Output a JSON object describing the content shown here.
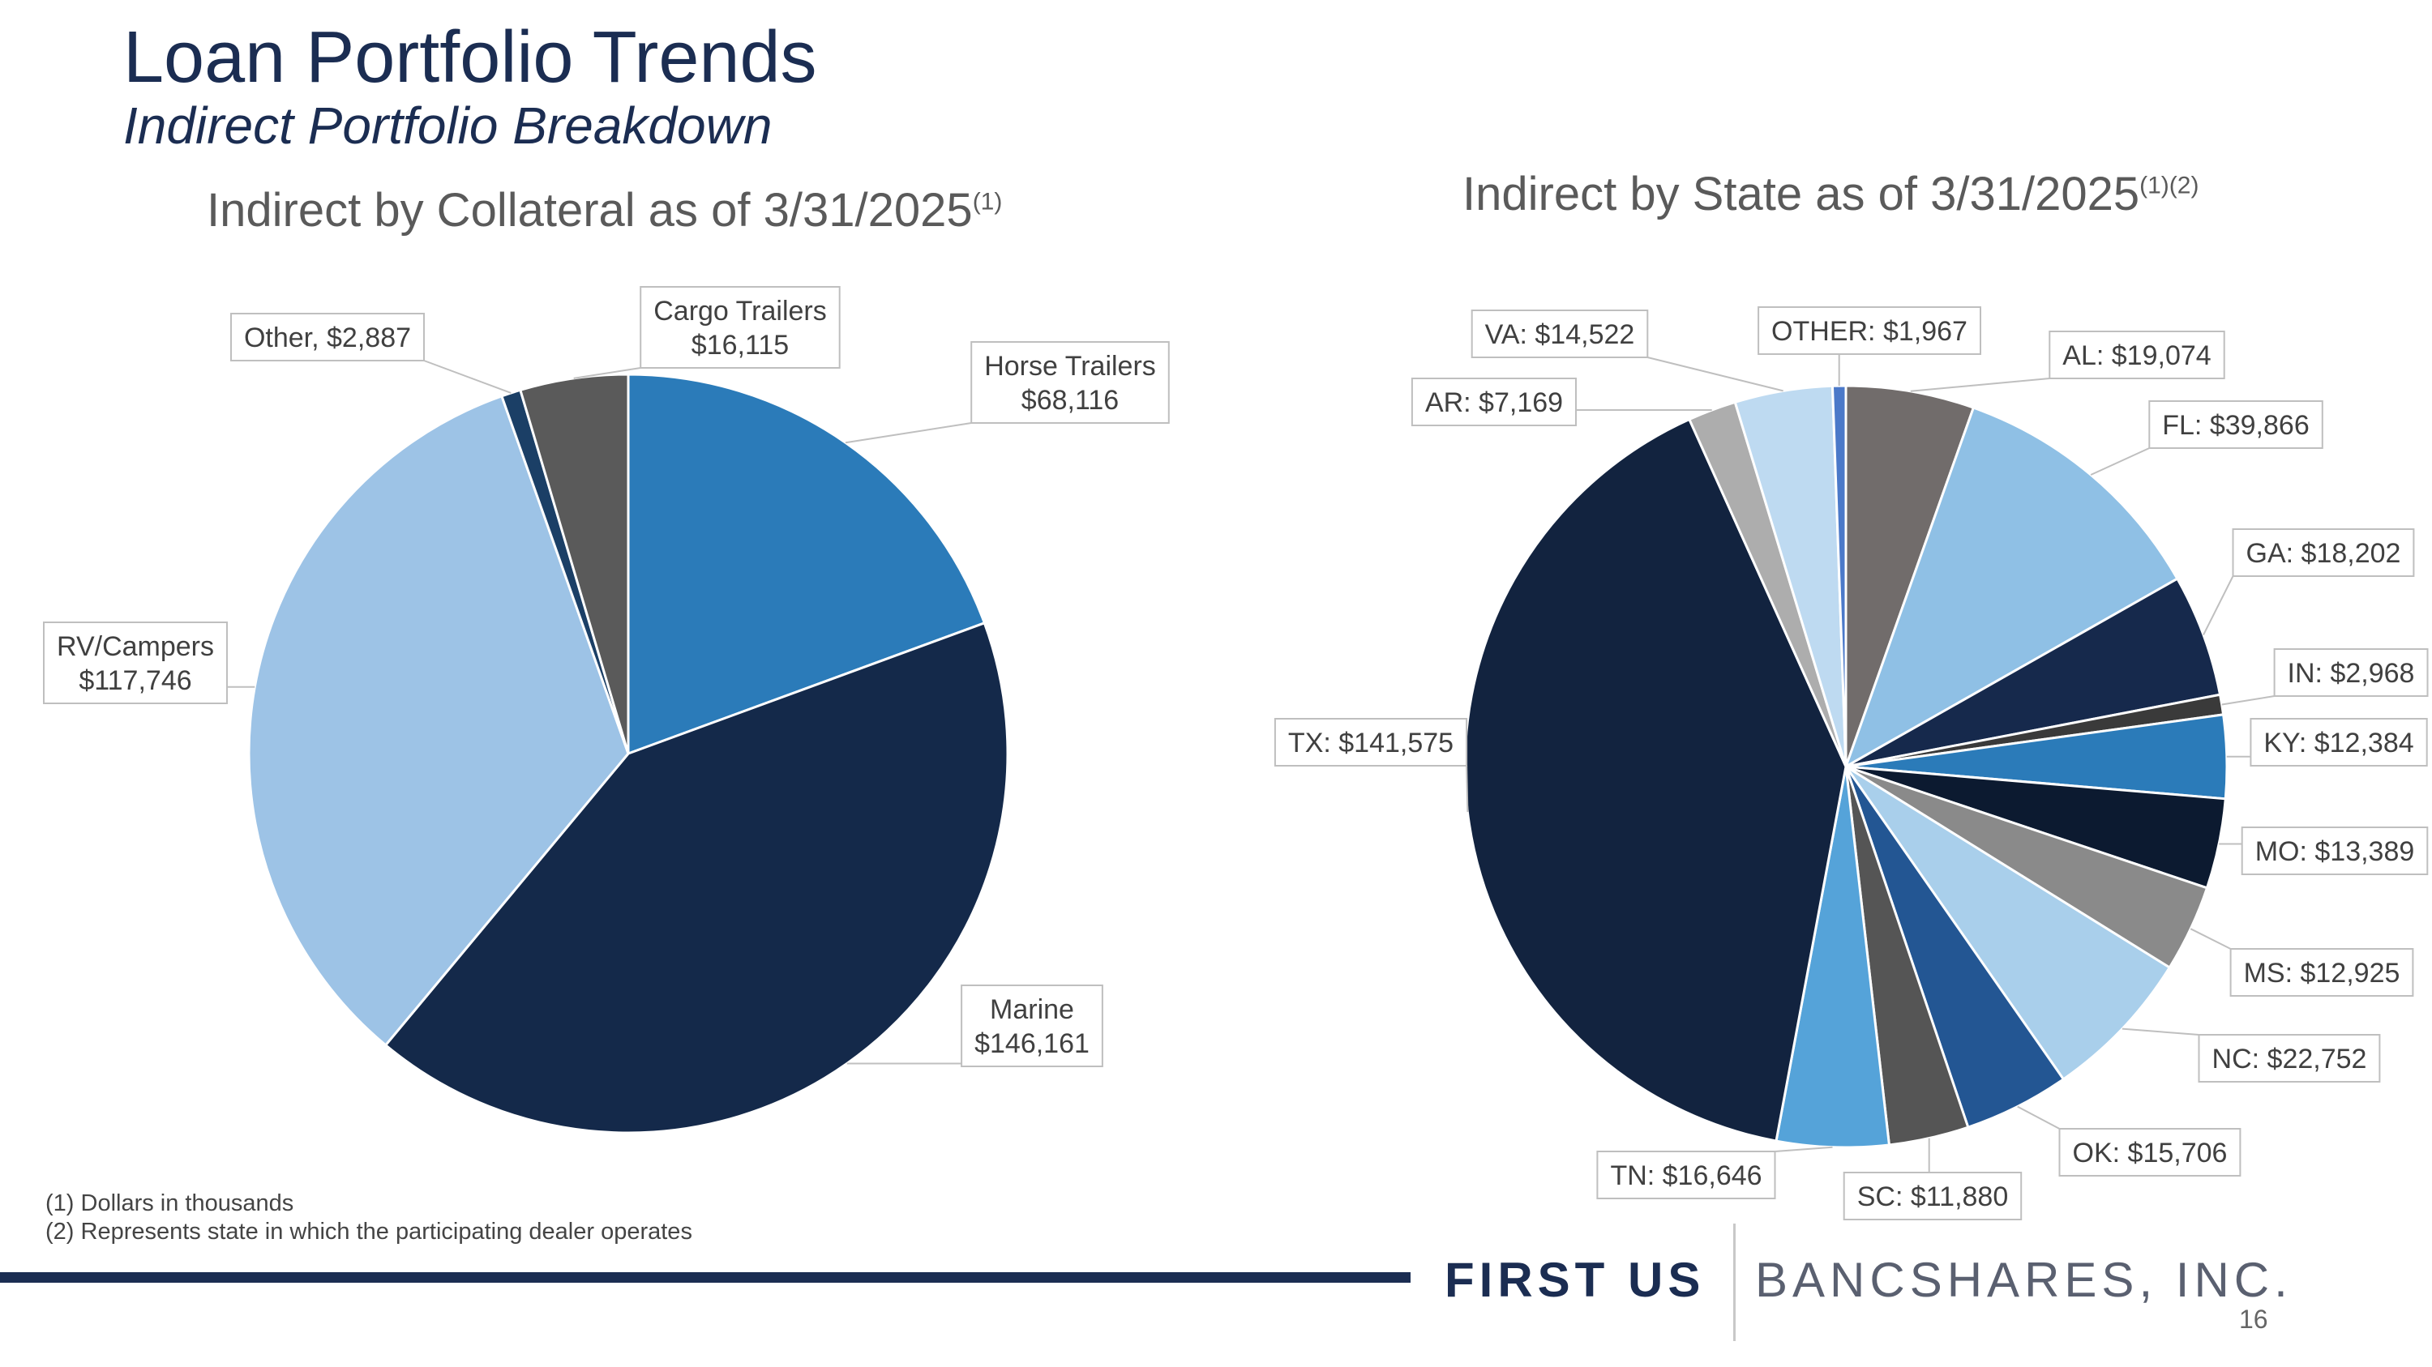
{
  "slide": {
    "title": "Loan Portfolio Trends",
    "subtitle": "Indirect Portfolio Breakdown",
    "footnotes": [
      "(1) Dollars in thousands",
      "(2) Represents state in which the participating dealer operates"
    ],
    "logo": {
      "first": "FIRST US",
      "rest": "BANCSHARES, INC."
    },
    "page_number": "16"
  },
  "chart_data": [
    {
      "type": "pie",
      "title": "Indirect by Collateral as of 3/31/2025",
      "title_sup": "(1)",
      "units": "$ thousands",
      "slices": [
        {
          "name": "Horse Trailers",
          "value": 68116,
          "display": "$68,116",
          "color": "#2b7bb9",
          "label_lines": [
            "Horse Trailers",
            "$68,116"
          ]
        },
        {
          "name": "Marine",
          "value": 146161,
          "display": "$146,161",
          "color": "#14294a",
          "label_lines": [
            "Marine",
            "$146,161"
          ]
        },
        {
          "name": "RV/Campers",
          "value": 117746,
          "display": "$117,746",
          "color": "#9dc3e6",
          "label_lines": [
            "RV/Campers",
            "$117,746"
          ]
        },
        {
          "name": "Other",
          "value": 2887,
          "display": "$2,887",
          "color": "#1b3f66",
          "label_lines": [
            "Other, $2,887"
          ]
        },
        {
          "name": "Cargo Trailers",
          "value": 16115,
          "display": "$16,115",
          "color": "#5a5a5a",
          "label_lines": [
            "Cargo Trailers",
            "$16,115"
          ]
        }
      ]
    },
    {
      "type": "pie",
      "title": "Indirect by State as of 3/31/2025",
      "title_sup": "(1)(2)",
      "units": "$ thousands",
      "slices": [
        {
          "name": "AL",
          "value": 19074,
          "display": "$19,074",
          "color": "#716c6b",
          "label_lines": [
            "AL: $19,074"
          ]
        },
        {
          "name": "FL",
          "value": 39866,
          "display": "$39,866",
          "color": "#8fc0e5",
          "label_lines": [
            "FL: $39,866"
          ]
        },
        {
          "name": "GA",
          "value": 18202,
          "display": "$18,202",
          "color": "#16294c",
          "label_lines": [
            "GA: $18,202"
          ]
        },
        {
          "name": "IN",
          "value": 2968,
          "display": "$2,968",
          "color": "#3a3a3a",
          "label_lines": [
            "IN: $2,968"
          ]
        },
        {
          "name": "KY",
          "value": 12384,
          "display": "$12,384",
          "color": "#2b7bb9",
          "label_lines": [
            "KY: $12,384"
          ]
        },
        {
          "name": "MO",
          "value": 13389,
          "display": "$13,389",
          "color": "#0c1a30",
          "label_lines": [
            "MO: $13,389"
          ]
        },
        {
          "name": "MS",
          "value": 12925,
          "display": "$12,925",
          "color": "#8a8a8a",
          "label_lines": [
            "MS: $12,925"
          ]
        },
        {
          "name": "NC",
          "value": 22752,
          "display": "$22,752",
          "color": "#a9cfeb",
          "label_lines": [
            "NC: $22,752"
          ]
        },
        {
          "name": "OK",
          "value": 15706,
          "display": "$15,706",
          "color": "#235693",
          "label_lines": [
            "OK: $15,706"
          ]
        },
        {
          "name": "SC",
          "value": 11880,
          "display": "$11,880",
          "color": "#555555",
          "label_lines": [
            "SC: $11,880"
          ]
        },
        {
          "name": "TN",
          "value": 16646,
          "display": "$16,646",
          "color": "#55a3d9",
          "label_lines": [
            "TN: $16,646"
          ]
        },
        {
          "name": "TX",
          "value": 141575,
          "display": "$141,575",
          "color": "#12233f",
          "label_lines": [
            "TX: $141,575"
          ]
        },
        {
          "name": "AR",
          "value": 7169,
          "display": "$7,169",
          "color": "#adadad",
          "label_lines": [
            "AR: $7,169"
          ]
        },
        {
          "name": "VA",
          "value": 14522,
          "display": "$14,522",
          "color": "#bedaf1",
          "label_lines": [
            "VA: $14,522"
          ]
        },
        {
          "name": "OTHER",
          "value": 1967,
          "display": "$1,967",
          "color": "#4b79c9",
          "label_lines": [
            "OTHER: $1,967"
          ]
        }
      ]
    }
  ]
}
